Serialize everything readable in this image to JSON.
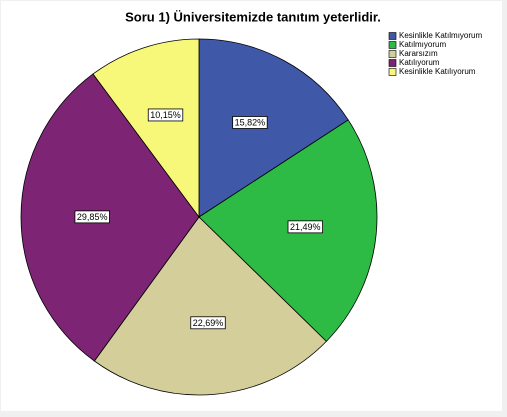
{
  "chart_data": {
    "type": "pie",
    "title": "Soru 1) Üniversitemizde tanıtım yeterlidir.",
    "categories": [
      "Kesinlikle Katılmıyorum",
      "Katılmıyorum",
      "Kararsızım",
      "Katılıyorum",
      "Kesinlikle Katılıyorum"
    ],
    "values": [
      15.82,
      21.49,
      22.69,
      29.85,
      10.15
    ],
    "value_labels": [
      "15,82%",
      "21,49%",
      "22,69%",
      "29,85%",
      "10,15%"
    ],
    "colors": [
      "#3f58a8",
      "#2ebb45",
      "#d4cf9a",
      "#7d2475",
      "#f7f77a"
    ],
    "legend": "top-right"
  }
}
